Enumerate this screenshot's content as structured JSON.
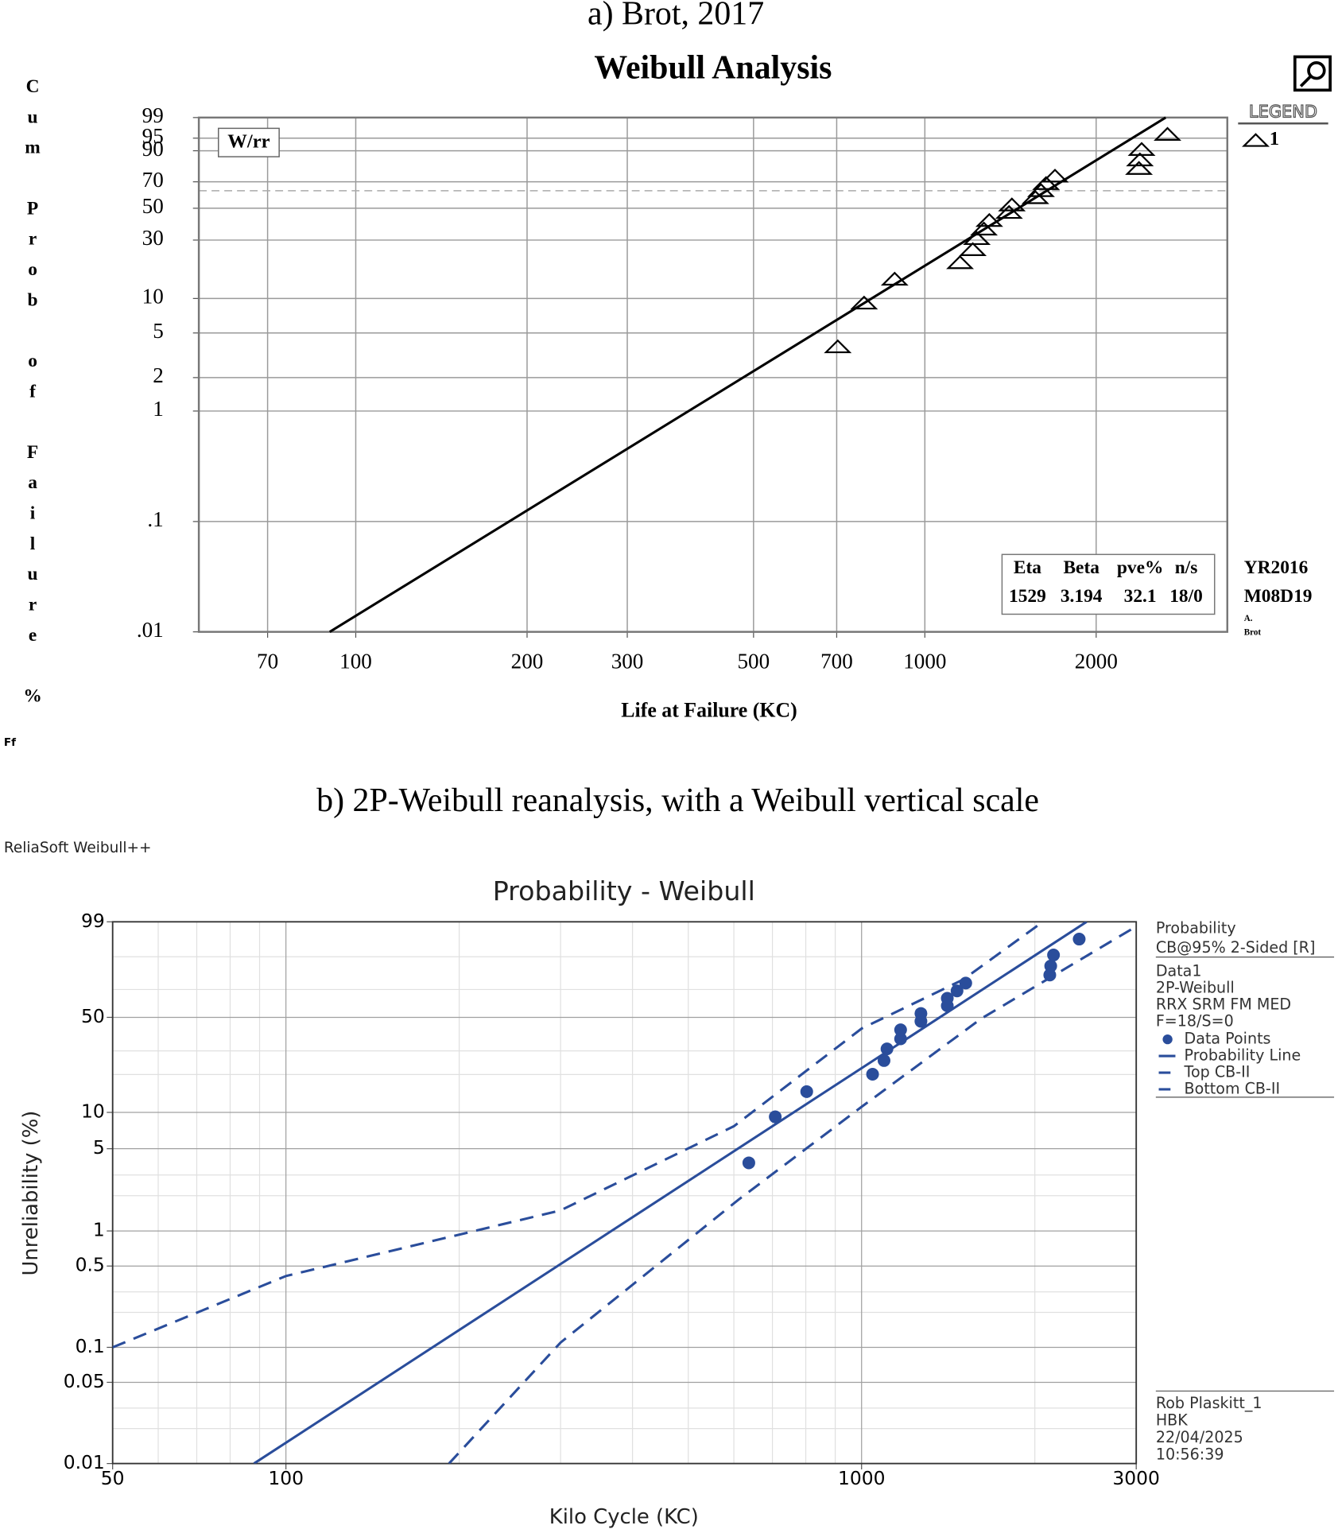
{
  "corner_mark": "Ff",
  "chart_data": [
    {
      "type": "weibull",
      "style": "a",
      "caption": "a) Brot, 2017",
      "title": "Weibull Analysis",
      "x_label": "Life at Failure (KC)",
      "y_label": "Cum Prob of Failure %",
      "method_label": "W/rr",
      "legend_title": "LEGEND",
      "xscale": "log",
      "yscale": "weibull",
      "grid": true,
      "xlim": [
        53,
        3400
      ],
      "ylim": [
        0.01,
        99
      ],
      "xticks": [
        70,
        100,
        200,
        300,
        500,
        700,
        1000,
        2000
      ],
      "yticks": [
        99,
        95,
        90,
        70,
        50,
        30,
        10,
        5,
        2,
        1,
        {
          "value": 0.1,
          "label": ".1"
        },
        {
          "value": 0.01,
          "label": ".01"
        }
      ],
      "reference_value": 63.2,
      "series": [
        {
          "name": "1",
          "color": "#000000",
          "marker": "triangle",
          "x": [
            703,
            782,
            885,
            1153,
            1214,
            1234,
            1270,
            1298,
            1406,
            1422,
            1564,
            1600,
            1633,
            1693,
            2378,
            2387,
            2404,
            2669
          ],
          "values": [
            3.8,
            9.2,
            14.7,
            20.1,
            25.5,
            31.0,
            36.4,
            41.8,
            47.3,
            52.7,
            58.2,
            63.6,
            69.0,
            74.5,
            79.9,
            85.3,
            90.8,
            96.2
          ]
        }
      ],
      "fit_line": {
        "color": "#000000",
        "x": [
          90,
          2650
        ],
        "values": [
          0.01,
          99
        ]
      },
      "stats_table": {
        "header": [
          "Eta",
          "Beta",
          "pve%",
          "n/s"
        ],
        "row": [
          1529,
          3.194,
          32.1,
          "18/0"
        ]
      },
      "stamp": [
        "YR2016",
        "M08D19",
        "A.",
        "Brot"
      ]
    },
    {
      "type": "weibull",
      "style": "b",
      "caption": "b) 2P-Weibull reanalysis, with a Weibull vertical scale",
      "software": "ReliaSoft Weibull++",
      "title": "Probability - Weibull",
      "x_label": "Kilo Cycle (KC)",
      "y_label": "Unreliability (%)",
      "xscale": "log",
      "yscale": "weibull",
      "grid": true,
      "xlim": [
        50,
        3000
      ],
      "ylim": [
        0.01,
        99
      ],
      "xticks": [
        50,
        100,
        1000,
        3000
      ],
      "yticks": [
        99,
        50,
        10,
        5,
        1,
        0.5,
        0.1,
        0.05,
        0.01
      ],
      "xminor": [
        60,
        70,
        80,
        90,
        200,
        300,
        400,
        500,
        600,
        700,
        800,
        900,
        2000
      ],
      "yminor": [
        90,
        70,
        30,
        20,
        3,
        2,
        0.3,
        0.2,
        0.03,
        0.02
      ],
      "legend_header": [
        "Probability",
        "CB@95% 2-Sided [R]"
      ],
      "legend_info": [
        "Data1",
        "2P-Weibull",
        "RRX SRM FM MED",
        "F=18/S=0"
      ],
      "series": [
        {
          "name": "Data Points",
          "color": "#2a4d9b",
          "marker": "circle",
          "x": [
            637,
            708,
            803,
            1045,
            1094,
            1107,
            1169,
            1169,
            1268,
            1268,
            1409,
            1409,
            1465,
            1517,
            2123,
            2131,
            2155,
            2388
          ],
          "values": [
            3.8,
            9.2,
            14.7,
            20.1,
            25.5,
            31.0,
            36.4,
            41.8,
            47.3,
            52.7,
            58.2,
            63.6,
            69.0,
            74.5,
            79.9,
            85.3,
            90.8,
            96.2
          ]
        },
        {
          "name": "Probability Line",
          "color": "#2a4d9b",
          "marker": "solid",
          "x": [
            88,
            2460
          ],
          "values": [
            0.01,
            99
          ]
        },
        {
          "name": "Top CB-II",
          "color": "#2a4d9b",
          "marker": "dashed",
          "x": [
            50,
            100,
            300,
            600,
            1000,
            1500,
            2065
          ],
          "values": [
            0.1,
            0.41,
            1.5,
            7.7,
            42.6,
            76.8,
            99
          ]
        },
        {
          "name": "Bottom CB-II",
          "color": "#2a4d9b",
          "marker": "dashed",
          "x": [
            192,
            300,
            611,
            1000,
            1612,
            3000
          ],
          "values": [
            0.01,
            0.11,
            1.85,
            11.1,
            49,
            98.5
          ]
        }
      ],
      "footer": [
        "Rob Plaskitt_1",
        "HBK",
        "22/04/2025",
        "10:56:39"
      ]
    }
  ]
}
